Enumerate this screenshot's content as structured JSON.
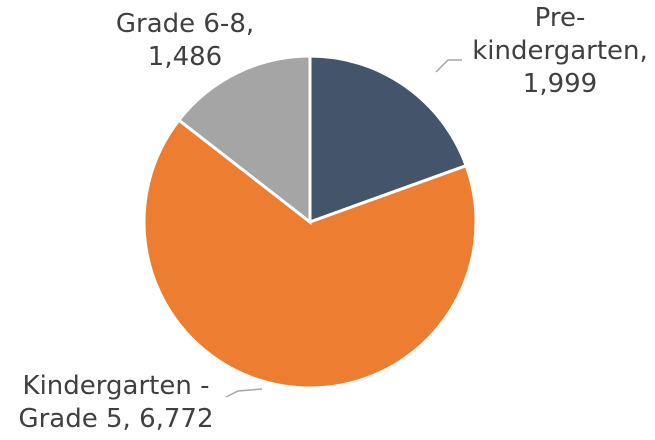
{
  "chart_data": {
    "type": "pie",
    "categories": [
      "Pre-kindergarten",
      "Kindergarten - Grade 5",
      "Grade 6-8"
    ],
    "values": [
      1999,
      6772,
      1486
    ],
    "value_labels": [
      "1,999",
      "6,772",
      "1,486"
    ],
    "colors": [
      "#44546a",
      "#ed7d31",
      "#a5a5a5"
    ]
  }
}
